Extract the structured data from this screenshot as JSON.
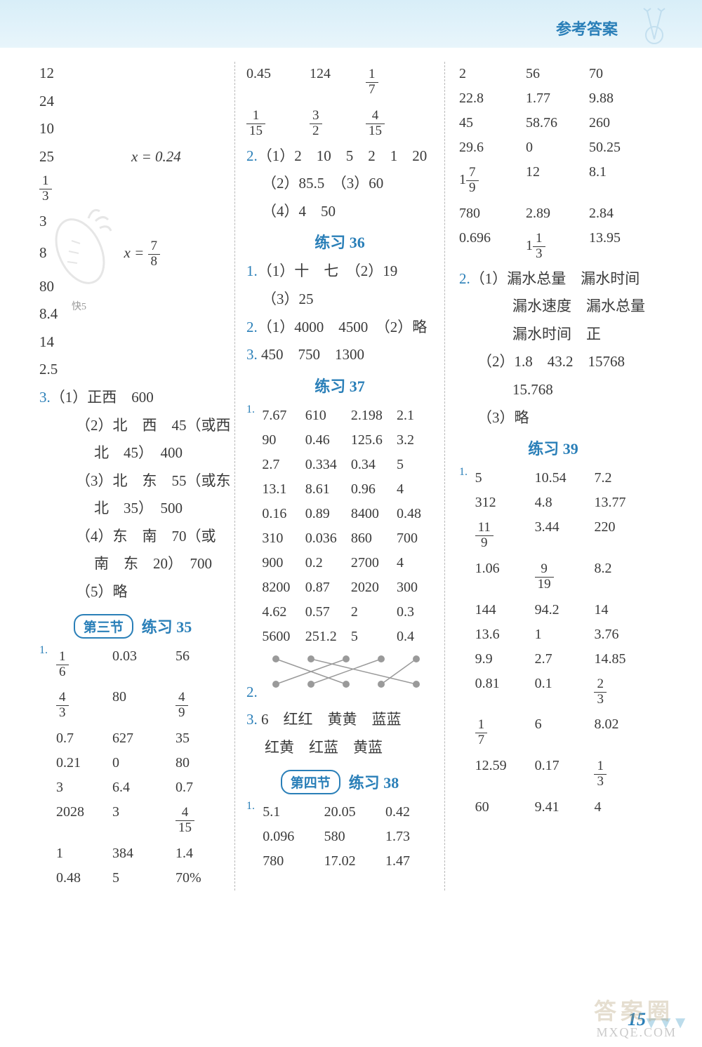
{
  "colors": {
    "accent": "#2a7fb8",
    "text": "#3a3a3a",
    "divider": "#b8b8b8",
    "header_bg_top": "#d8eef8",
    "header_bg_bottom": "#e8f5fb"
  },
  "header": {
    "title": "参考答案"
  },
  "page_number": "15",
  "watermark": {
    "text": "答案圈",
    "url": "MXQE.COM"
  },
  "col1": {
    "top_values": [
      "12",
      "24",
      "10"
    ],
    "line_25": {
      "a": "25",
      "eq": "x = 0.24"
    },
    "frac_1_3": {
      "num": "1",
      "den": "3"
    },
    "val_3": "3",
    "line_8": {
      "a": "8",
      "eq_lhs": "x =",
      "eq_num": "7",
      "eq_den": "8"
    },
    "rest": [
      "80",
      "8.4",
      "14",
      "2.5"
    ],
    "decor": "快5",
    "q3": {
      "label": "3.",
      "items": [
        "（1）正西　600",
        "（2）北　西　45（或西",
        "北　45）　400",
        "（3）北　东　55（或东",
        "北　35）　500",
        "（4）东　南　70（或",
        "南　东　20）　700",
        "（5）略"
      ]
    },
    "sec3": {
      "badge": "第三节",
      "title": "练习 35"
    },
    "p35_q1": {
      "label": "1.",
      "rows": [
        [
          {
            "frac": [
              "1",
              "6"
            ]
          },
          "0.03",
          "56"
        ],
        [
          {
            "frac": [
              "4",
              "3"
            ]
          },
          "80",
          {
            "frac": [
              "4",
              "9"
            ]
          }
        ],
        [
          "0.7",
          "627",
          "35"
        ],
        [
          "0.21",
          "0",
          "80"
        ],
        [
          "3",
          "6.4",
          "0.7"
        ],
        [
          "2028",
          "3",
          {
            "frac": [
              "4",
              "15"
            ]
          }
        ],
        [
          "1",
          "384",
          "1.4"
        ],
        [
          "0.48",
          "5",
          "70%"
        ]
      ]
    }
  },
  "col2": {
    "top_rows": [
      [
        "0.45",
        "124",
        {
          "frac": [
            "1",
            "7"
          ]
        }
      ],
      [
        {
          "frac": [
            "1",
            "15"
          ]
        },
        {
          "frac": [
            "3",
            "2"
          ]
        },
        {
          "frac": [
            "4",
            "15"
          ]
        }
      ]
    ],
    "q2": {
      "label": "2.",
      "lines": [
        "（1）2　10　5　2　1　20",
        "（2）85.5　（3）60",
        "（4）4　50"
      ]
    },
    "p36": {
      "title": "练习 36",
      "q1": {
        "label": "1.",
        "lines": [
          "（1）十　七　（2）19",
          "（3）25"
        ]
      },
      "q2": {
        "label": "2.",
        "text": "（1）4000　4500　（2）略"
      },
      "q3": {
        "label": "3.",
        "text": "450　750　1300"
      }
    },
    "p37": {
      "title": "练习 37",
      "q1": {
        "label": "1.",
        "rows": [
          [
            "7.67",
            "610",
            "2.198",
            "2.1"
          ],
          [
            "90",
            "0.46",
            "125.6",
            "3.2"
          ],
          [
            "2.7",
            "0.334",
            "0.34",
            "5"
          ],
          [
            "13.1",
            "8.61",
            "0.96",
            "4"
          ],
          [
            "0.16",
            "0.89",
            "8400",
            "0.48"
          ],
          [
            "310",
            "0.036",
            "860",
            "700"
          ],
          [
            "900",
            "0.2",
            "2700",
            "4"
          ],
          [
            "8200",
            "0.87",
            "2020",
            "300"
          ],
          [
            "4.62",
            "0.57",
            "2",
            "0.3"
          ],
          [
            "5600",
            "251.2",
            "5",
            "0.4"
          ]
        ]
      },
      "q2": {
        "label": "2.",
        "dots": 5
      },
      "q3": {
        "label": "3.",
        "l1": "6　红红　黄黄　蓝蓝",
        "l2": "红黄　红蓝　黄蓝"
      }
    },
    "sec4": {
      "badge": "第四节",
      "title": "练习 38"
    },
    "p38_q1": {
      "label": "1.",
      "rows": [
        [
          "5.1",
          "20.05",
          "0.42"
        ],
        [
          "0.096",
          "580",
          "1.73"
        ],
        [
          "780",
          "17.02",
          "1.47"
        ]
      ]
    }
  },
  "col3": {
    "top_rows": [
      [
        "2",
        "56",
        "70"
      ],
      [
        "22.8",
        "1.77",
        "9.88"
      ],
      [
        "45",
        "58.76",
        "260"
      ],
      [
        "29.6",
        "0",
        "50.25"
      ],
      [
        {
          "frac_mixed": [
            "1",
            "7",
            "9"
          ]
        },
        "12",
        "8.1"
      ],
      [
        "780",
        "2.89",
        "2.84"
      ],
      [
        "0.696",
        {
          "frac_mixed": [
            "1",
            "1",
            "3"
          ]
        },
        "13.95"
      ]
    ],
    "q2": {
      "label": "2.",
      "lines": [
        "（1）漏水总量　漏水时间",
        "漏水速度　漏水总量",
        "漏水时间　正",
        "（2）1.8　43.2　15768",
        "15.768",
        "（3）略"
      ],
      "indent": [
        0,
        2,
        2,
        1,
        2,
        1
      ]
    },
    "p39": {
      "title": "练习 39",
      "q1": {
        "label": "1.",
        "rows": [
          [
            "5",
            "10.54",
            "7.2"
          ],
          [
            "312",
            "4.8",
            "13.77"
          ],
          [
            {
              "frac": [
                "11",
                "9"
              ]
            },
            "3.44",
            "220"
          ],
          [
            "1.06",
            {
              "frac": [
                "9",
                "19"
              ]
            },
            "8.2"
          ],
          [
            "144",
            "94.2",
            "14"
          ],
          [
            "13.6",
            "1",
            "3.76"
          ],
          [
            "9.9",
            "2.7",
            "14.85"
          ],
          [
            "0.81",
            "0.1",
            {
              "frac": [
                "2",
                "3"
              ]
            }
          ],
          [
            {
              "frac": [
                "1",
                "7"
              ]
            },
            "6",
            "8.02"
          ],
          [
            "12.59",
            "0.17",
            {
              "frac": [
                "1",
                "3"
              ]
            }
          ],
          [
            "60",
            "9.41",
            "4"
          ]
        ]
      }
    }
  }
}
